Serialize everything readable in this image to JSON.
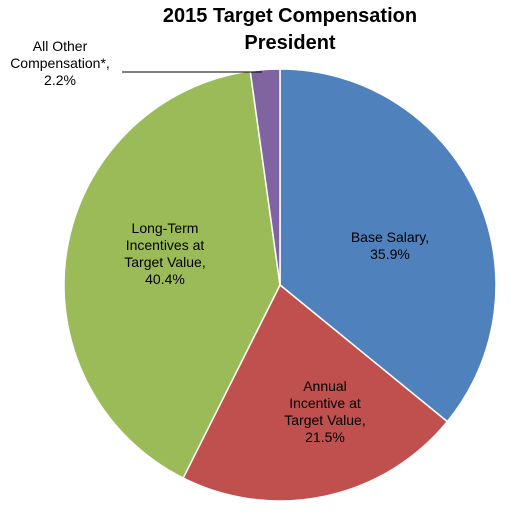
{
  "chart_data": {
    "type": "pie",
    "title": [
      "2015 Target Compensation",
      "President"
    ],
    "slices": [
      {
        "label": [
          "Base Salary,",
          "35.9%"
        ],
        "value": 35.9,
        "color": "#4F81BD"
      },
      {
        "label": [
          "Annual",
          "Incentive at",
          "Target Value,",
          "21.5%"
        ],
        "value": 21.5,
        "color": "#C0504D"
      },
      {
        "label": [
          "Long-Term",
          "Incentives at",
          "Target Value,",
          "40.4%"
        ],
        "value": 40.4,
        "color": "#9BBB59"
      },
      {
        "label": [
          "All Other",
          "Compensation*,",
          "2.2%"
        ],
        "value": 2.2,
        "color": "#8064A2"
      }
    ],
    "start_angle": "12 o'clock",
    "direction": "clockwise",
    "legend": "none"
  }
}
